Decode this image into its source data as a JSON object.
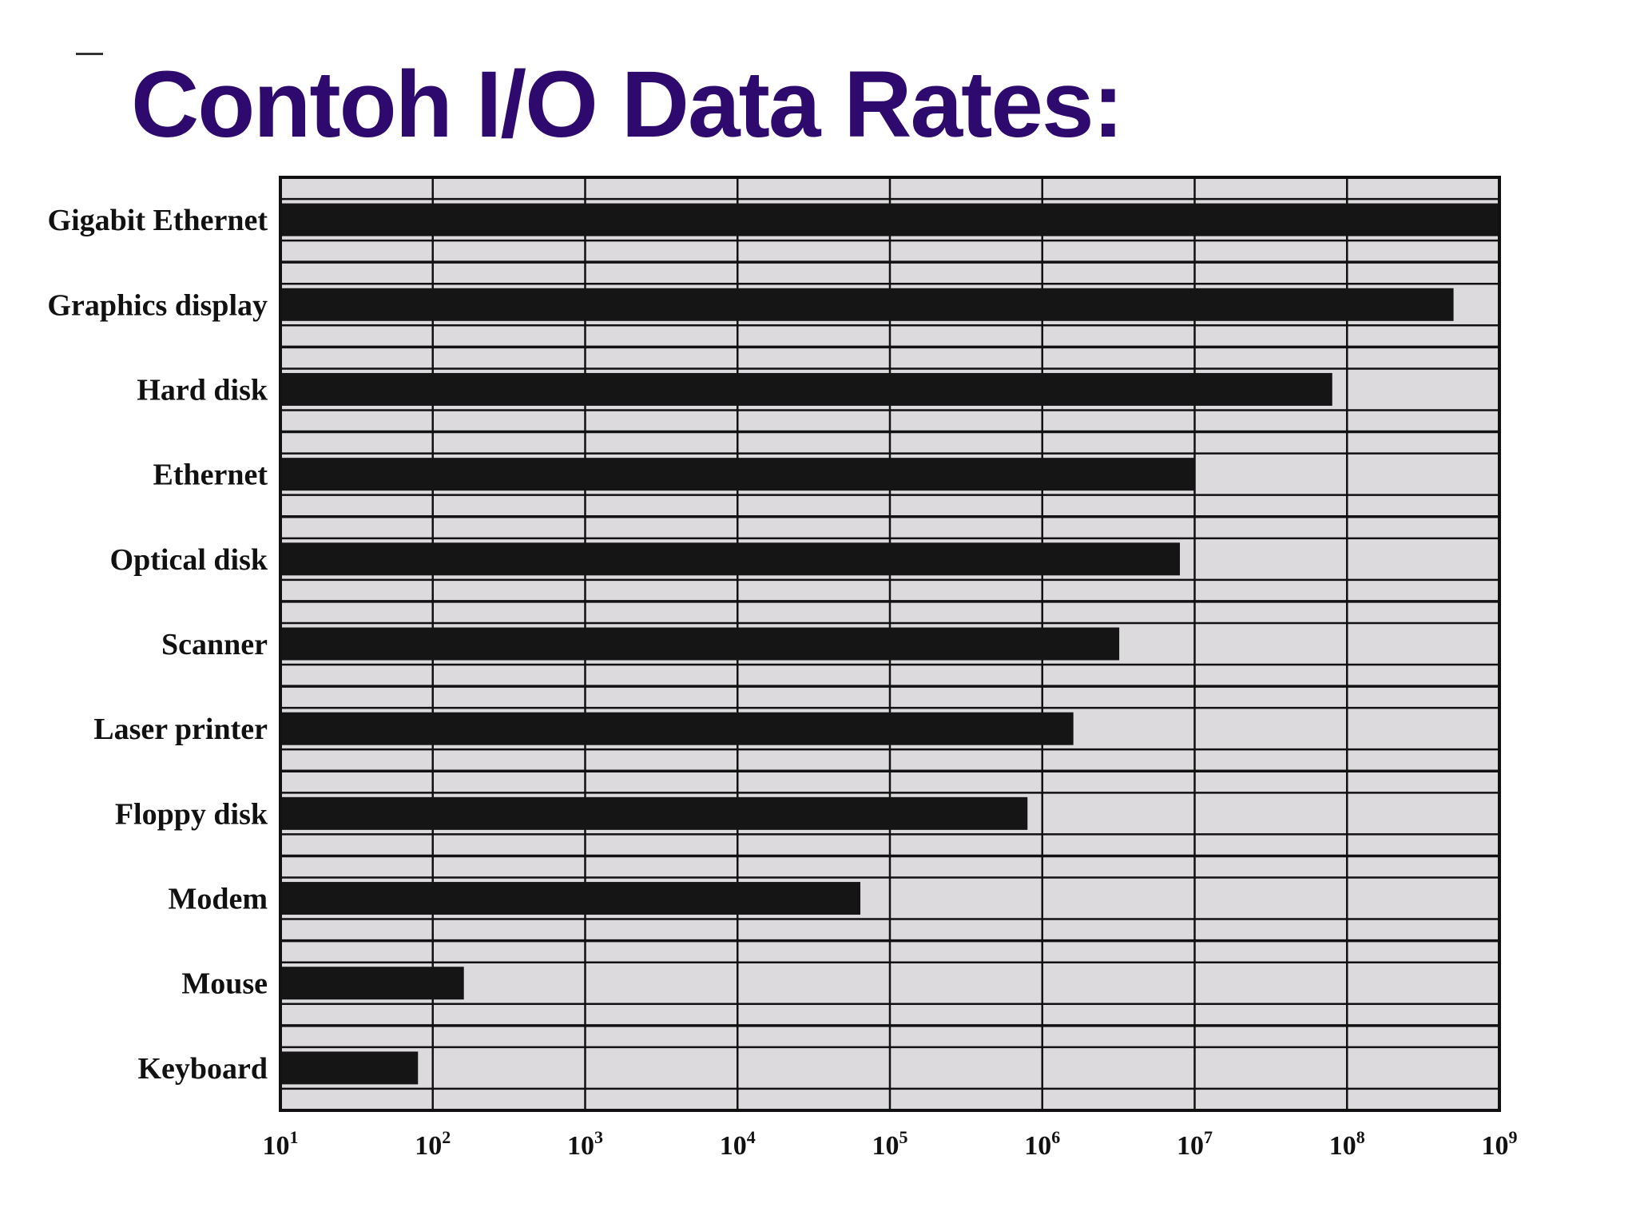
{
  "slide": {
    "title": "Contoh I/O Data Rates:"
  },
  "colors": {
    "title": "#2e0a6e",
    "plot_background": "#dcdadd",
    "bar": "#151515",
    "grid": "#111111"
  },
  "chart_data": {
    "type": "bar",
    "orientation": "horizontal",
    "x_scale": "log10",
    "xlim": [
      10,
      1000000000
    ],
    "x_ticks": [
      {
        "base": "10",
        "exp": "1",
        "value": 10
      },
      {
        "base": "10",
        "exp": "2",
        "value": 100
      },
      {
        "base": "10",
        "exp": "3",
        "value": 1000
      },
      {
        "base": "10",
        "exp": "4",
        "value": 10000
      },
      {
        "base": "10",
        "exp": "5",
        "value": 100000
      },
      {
        "base": "10",
        "exp": "6",
        "value": 1000000
      },
      {
        "base": "10",
        "exp": "7",
        "value": 10000000
      },
      {
        "base": "10",
        "exp": "8",
        "value": 100000000
      },
      {
        "base": "10",
        "exp": "9",
        "value": 1000000000
      }
    ],
    "categories": [
      "Gigabit Ethernet",
      "Graphics display",
      "Hard disk",
      "Ethernet",
      "Optical disk",
      "Scanner",
      "Laser printer",
      "Floppy disk",
      "Modem",
      "Mouse",
      "Keyboard"
    ],
    "values": [
      1000000000,
      500000000,
      80000000,
      10000000,
      8000000,
      3200000,
      1600000,
      800000,
      64000,
      160,
      80
    ],
    "grid": true,
    "legend": "none"
  }
}
